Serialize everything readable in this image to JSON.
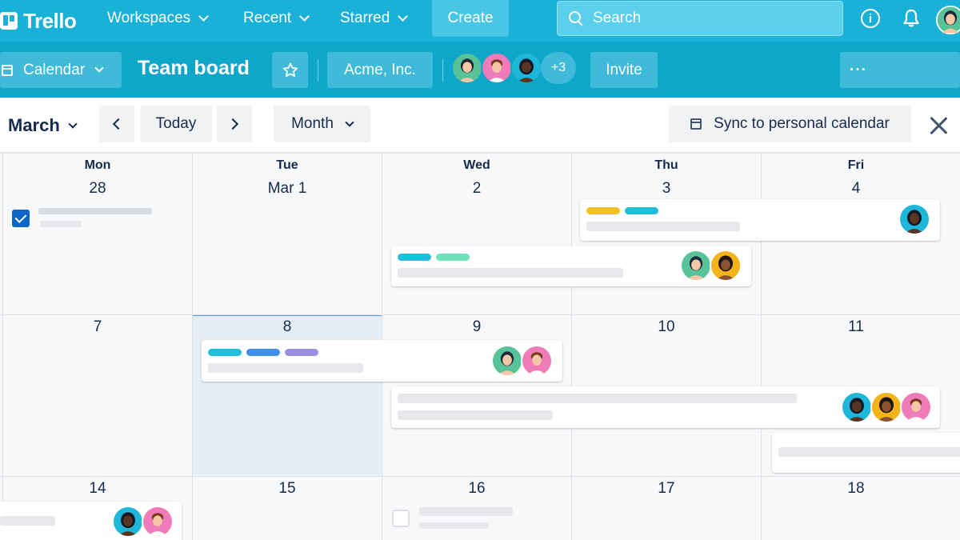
{
  "nav": {
    "logo": "Trello",
    "workspaces": "Workspaces",
    "recent": "Recent",
    "starred": "Starred",
    "create": "Create",
    "search_label": "Search"
  },
  "board": {
    "view_label": "Calendar",
    "title": "Team board",
    "workspace": "Acme, Inc.",
    "more_members": "+3",
    "invite": "Invite",
    "more_menu": "···"
  },
  "toolbar": {
    "month": "March",
    "today": "Today",
    "view": "Month",
    "sync": "Sync to personal calendar"
  },
  "calendar": {
    "weekdays": [
      "Mon",
      "Tue",
      "Wed",
      "Thu",
      "Fri"
    ],
    "weeks": [
      [
        "28",
        "Mar 1",
        "2",
        "3",
        "4"
      ],
      [
        "7",
        "8",
        "9",
        "10",
        "11"
      ],
      [
        "14",
        "15",
        "16",
        "17",
        "18"
      ]
    ],
    "today_index": [
      1,
      1
    ]
  },
  "colors": {
    "nav_bg": "#1ab1d9",
    "board_bg": "#0ea6c9",
    "label_yellow": "#f5c11f",
    "label_cyan": "#1fbfdc",
    "label_green": "#6fe1ba",
    "label_blue": "#3f8fe6",
    "label_purple": "#9f8fe0",
    "check_blue": "#0c66c8"
  },
  "avatars": {
    "green": {
      "bg": "#58c39a",
      "skin": "#f3c8a8",
      "hair": "#1f2937"
    },
    "pink": {
      "bg": "#f07bb9",
      "skin": "#f6c7a6",
      "hair": "#7a3b1c"
    },
    "teal": {
      "bg": "#1fb7d9",
      "skin": "#5a3521",
      "hair": "#111827"
    },
    "yellow": {
      "bg": "#f2b31b",
      "skin": "#8a5230",
      "hair": "#1f1410"
    }
  }
}
